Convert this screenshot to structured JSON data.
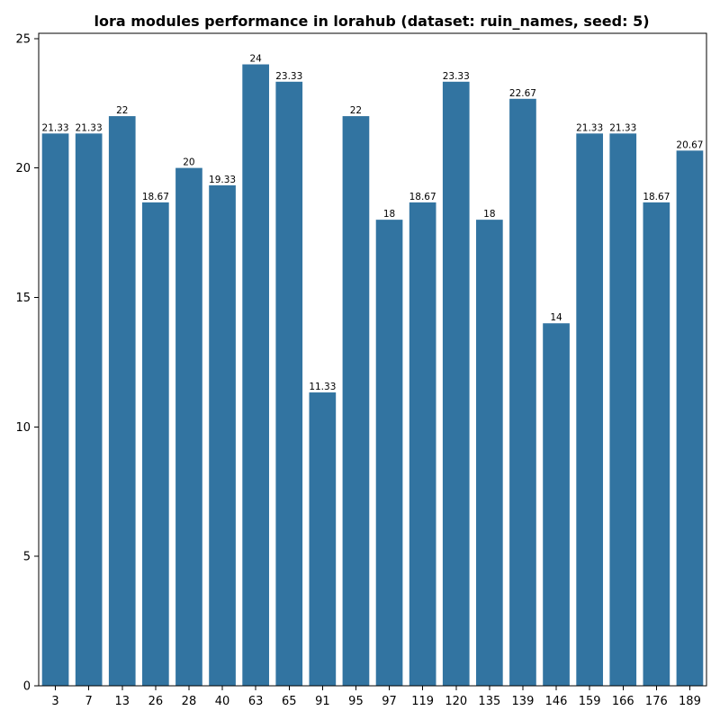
{
  "chart_data": {
    "type": "bar",
    "title": "lora modules performance in lorahub (dataset: ruin_names, seed: 5)",
    "xlabel": "",
    "ylabel": "",
    "categories": [
      "3",
      "7",
      "13",
      "26",
      "28",
      "40",
      "63",
      "65",
      "91",
      "95",
      "97",
      "119",
      "120",
      "135",
      "139",
      "146",
      "159",
      "166",
      "176",
      "189"
    ],
    "values": [
      21.33,
      21.33,
      22,
      18.67,
      20,
      19.33,
      24,
      23.33,
      11.33,
      22,
      18,
      18.67,
      23.33,
      18,
      22.67,
      14,
      21.33,
      21.33,
      18.67,
      20.67
    ],
    "value_labels": [
      "21.33",
      "21.33",
      "22",
      "18.67",
      "20",
      "19.33",
      "24",
      "23.33",
      "11.33",
      "22",
      "18",
      "18.67",
      "23.33",
      "18",
      "22.67",
      "14",
      "21.33",
      "21.33",
      "18.67",
      "20.67"
    ],
    "ylim": [
      0,
      25.2
    ],
    "yticks": [
      0,
      5,
      10,
      15,
      20,
      25
    ],
    "ytick_labels": [
      "0",
      "5",
      "10",
      "15",
      "20",
      "25"
    ],
    "grid": false,
    "bar_color": "#3274a1"
  }
}
